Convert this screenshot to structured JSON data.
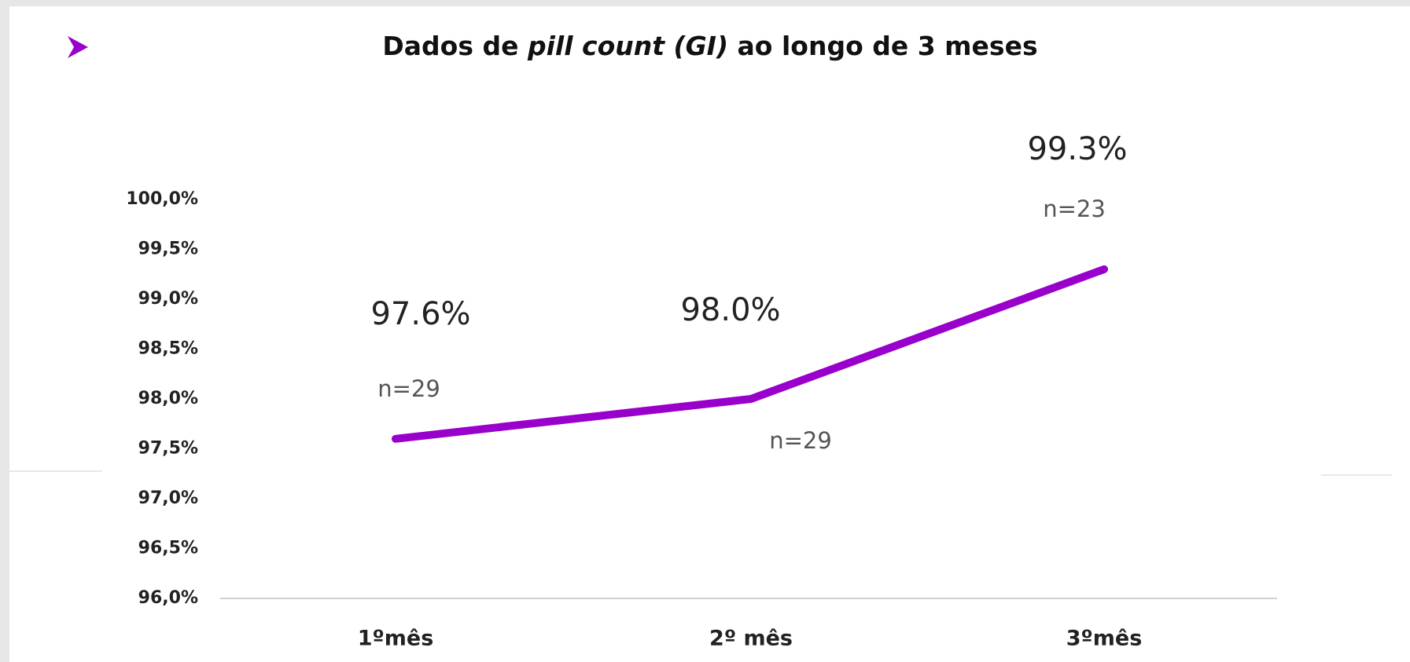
{
  "chart_data": {
    "type": "line",
    "title_runs": [
      {
        "text": "Dados de ",
        "italic": false
      },
      {
        "text": "pill count",
        "italic": true
      },
      {
        "text": "  (GI)",
        "italic": true
      },
      {
        "text": " ao longo de 3 meses",
        "italic": false
      }
    ],
    "categories": [
      "1ºmês",
      "2º mês",
      "3ºmês"
    ],
    "values": [
      97.6,
      98.0,
      99.3
    ],
    "value_labels": [
      "97.6%",
      "98.0%",
      "99.3%"
    ],
    "annotations": [
      "n=29",
      "n=29",
      "n=23"
    ],
    "color": "#9900cc",
    "ylim": [
      96,
      100
    ],
    "yticks": [
      {
        "value": 96,
        "label": "96,0%"
      },
      {
        "value": 96.5,
        "label": "96,5%"
      },
      {
        "value": 97,
        "label": "97,0%"
      },
      {
        "value": 97.5,
        "label": "97,5%"
      },
      {
        "value": 98,
        "label": "98,0%"
      },
      {
        "value": 98.5,
        "label": "98,5%"
      },
      {
        "value": 99,
        "label": "99,0%"
      },
      {
        "value": 99.5,
        "label": "99,5%"
      },
      {
        "value": 100,
        "label": "100,0%"
      }
    ],
    "grid": false
  }
}
